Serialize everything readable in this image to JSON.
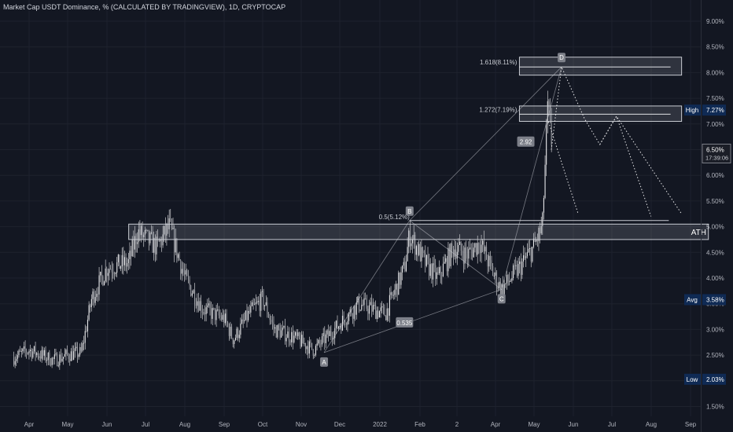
{
  "title": "Market Cap USDT Dominance, % (CALCULATED BY TRADINGVIEW), 1D, CRYPTOCAP",
  "colors": {
    "background": "#131722",
    "candle": "#e8e8ea",
    "grid": "#1e222d",
    "axis_text": "#b2b5be",
    "annotation": "#c9ccd3",
    "badge_dark": "#0f2a54",
    "badge_gray": "#7d8089"
  },
  "chart_data": {
    "type": "candlestick",
    "title": "Market Cap USDT Dominance, % (CALCULATED BY TRADINGVIEW), 1D, CRYPTOCAP",
    "x_ticks": [
      "Apr",
      "May",
      "Jun",
      "Jul",
      "Aug",
      "Sep",
      "Oct",
      "Nov",
      "Dec",
      "2022",
      "Feb",
      "2",
      "Apr",
      "May",
      "Jun",
      "Jul",
      "Aug",
      "Sep"
    ],
    "y_ticks": [
      "9.00%",
      "8.50%",
      "8.00%",
      "7.50%",
      "7.00%",
      "6.50%",
      "6.00%",
      "5.50%",
      "5.00%",
      "4.50%",
      "4.00%",
      "3.50%",
      "3.00%",
      "2.50%",
      "2.00%",
      "1.50%"
    ],
    "ylim": [
      1.4,
      9.3
    ],
    "price_path": [
      [
        "2021-03-20",
        2.45
      ],
      [
        "2021-04-01",
        2.6
      ],
      [
        "2021-04-20",
        2.4
      ],
      [
        "2021-05-01",
        2.5
      ],
      [
        "2021-05-12",
        2.55
      ],
      [
        "2021-05-20",
        3.6
      ],
      [
        "2021-06-01",
        4.2
      ],
      [
        "2021-06-18",
        4.3
      ],
      [
        "2021-06-25",
        4.9
      ],
      [
        "2021-07-10",
        4.6
      ],
      [
        "2021-07-20",
        5.0
      ],
      [
        "2021-08-01",
        4.0
      ],
      [
        "2021-08-15",
        3.4
      ],
      [
        "2021-09-01",
        3.2
      ],
      [
        "2021-09-08",
        2.8
      ],
      [
        "2021-09-20",
        3.3
      ],
      [
        "2021-10-01",
        3.6
      ],
      [
        "2021-10-10",
        3.0
      ],
      [
        "2021-10-25",
        2.85
      ],
      [
        "2021-11-10",
        2.6
      ],
      [
        "2021-11-30",
        3.1
      ],
      [
        "2021-12-15",
        3.5
      ],
      [
        "2022-01-05",
        3.3
      ],
      [
        "2022-01-20",
        4.2
      ],
      [
        "2022-01-24",
        4.85
      ],
      [
        "2022-02-05",
        4.3
      ],
      [
        "2022-02-15",
        4.0
      ],
      [
        "2022-02-28",
        4.6
      ],
      [
        "2022-03-10",
        4.45
      ],
      [
        "2022-03-20",
        4.7
      ],
      [
        "2022-04-01",
        4.0
      ],
      [
        "2022-04-06",
        3.78
      ],
      [
        "2022-04-20",
        4.2
      ],
      [
        "2022-05-01",
        4.6
      ],
      [
        "2022-05-08",
        5.0
      ],
      [
        "2022-05-12",
        7.27
      ],
      [
        "2022-05-16",
        6.5
      ]
    ],
    "reference_lines": [
      {
        "label": "Avg",
        "value_label": "3.58%",
        "value": 3.58
      },
      {
        "label": "High",
        "value_label": "7.27%",
        "value": 7.27
      },
      {
        "label": "Low",
        "value_label": "2.03%",
        "value": 2.03
      }
    ],
    "current_price": {
      "value": 6.5,
      "value_label": "6.50%",
      "countdown": "17:39:06"
    },
    "zones": [
      {
        "label": "1.618(8.11%)",
        "level": 8.11,
        "low": 7.95,
        "high": 8.3,
        "from": "2022-04-20",
        "to": "2022-08-25"
      },
      {
        "label": "1.272(7.19%)",
        "level": 7.19,
        "low": 7.05,
        "high": 7.35,
        "from": "2022-04-20",
        "to": "2022-08-25"
      },
      {
        "label": "ATH",
        "level": 5.12,
        "low": 4.75,
        "high": 5.05,
        "from": "2021-06-18",
        "to": "2022-09-15"
      }
    ],
    "fib_labels": [
      {
        "label": "0.5(5.12%)",
        "level": 5.12
      }
    ],
    "pattern_points": [
      {
        "label": "A",
        "date": "2021-11-18",
        "value": 2.55
      },
      {
        "label": "B",
        "date": "2022-01-24",
        "value": 5.12
      },
      {
        "label": "C",
        "date": "2022-04-06",
        "value": 3.78
      },
      {
        "label": "D",
        "date": "2022-05-23",
        "value": 8.11
      }
    ],
    "ratio_labels": [
      {
        "label": "2.92",
        "date": "2022-04-25",
        "value": 6.65
      },
      {
        "label": "0.535",
        "date": "2022-01-20",
        "value": 3.13
      }
    ],
    "projection_1": [
      [
        "2022-05-15",
        6.5
      ],
      [
        "2022-05-23",
        8.11
      ],
      [
        "2022-06-10",
        7.1
      ],
      [
        "2022-06-22",
        6.6
      ],
      [
        "2022-07-05",
        7.15
      ],
      [
        "2022-08-01",
        5.2
      ]
    ],
    "projection_2": [
      [
        "2022-05-12",
        7.1
      ],
      [
        "2022-06-05",
        5.25
      ]
    ],
    "projection_3": [
      [
        "2022-06-22",
        6.6
      ],
      [
        "2022-07-05",
        7.15
      ],
      [
        "2022-08-25",
        5.25
      ]
    ]
  }
}
